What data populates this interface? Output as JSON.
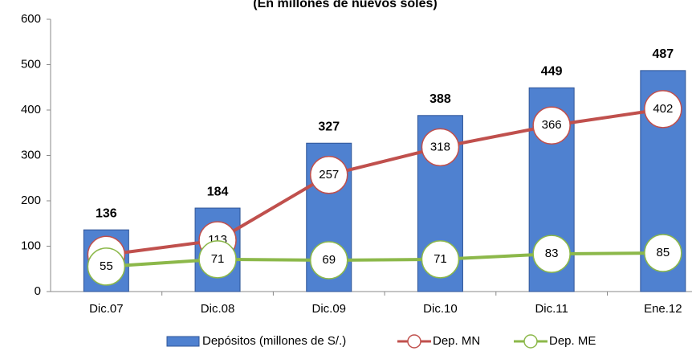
{
  "chart_data": {
    "type": "bar",
    "subtitle": "(En millones de nuevos soles)",
    "categories": [
      "Dic.07",
      "Dic.08",
      "Dic.09",
      "Dic.10",
      "Dic.11",
      "Ene.12"
    ],
    "series": [
      {
        "name": "Depósitos (millones de S/.)",
        "type": "bar",
        "color": "#4f81d0",
        "values": [
          136,
          184,
          327,
          388,
          449,
          487
        ]
      },
      {
        "name": "Dep. MN",
        "type": "line",
        "color": "#c0504d",
        "values": [
          81,
          113,
          257,
          318,
          366,
          402
        ]
      },
      {
        "name": "Dep. ME",
        "type": "line",
        "color": "#8cb84a",
        "values": [
          55,
          71,
          69,
          71,
          83,
          85
        ]
      }
    ],
    "ylim": [
      0,
      600
    ],
    "yticks": [
      0,
      100,
      200,
      300,
      400,
      500,
      600
    ],
    "grid": false,
    "legend": "bottom"
  }
}
